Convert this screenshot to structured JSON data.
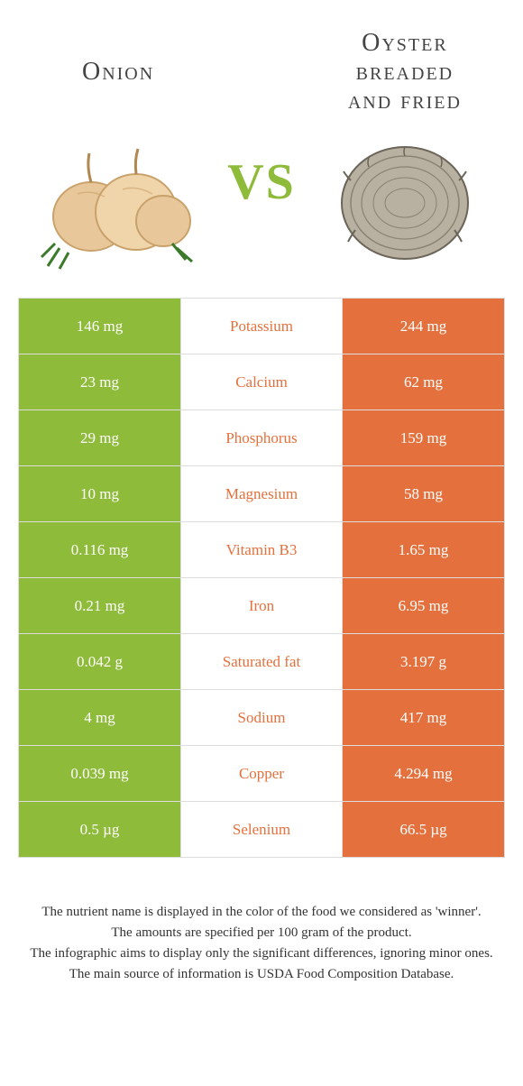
{
  "colors": {
    "left": "#8fbb3a",
    "right": "#e3703d",
    "vs": "#8fbb3a",
    "nutrient_text": "#e3703d"
  },
  "foods": {
    "left": {
      "title": "Onion"
    },
    "right": {
      "title": "Oyster\nbreaded\nand fried"
    }
  },
  "vs_label": "VS",
  "rows": [
    {
      "nutrient": "Potassium",
      "left": "146 mg",
      "right": "244 mg",
      "winner": "right"
    },
    {
      "nutrient": "Calcium",
      "left": "23 mg",
      "right": "62 mg",
      "winner": "right"
    },
    {
      "nutrient": "Phosphorus",
      "left": "29 mg",
      "right": "159 mg",
      "winner": "right"
    },
    {
      "nutrient": "Magnesium",
      "left": "10 mg",
      "right": "58 mg",
      "winner": "right"
    },
    {
      "nutrient": "Vitamin B3",
      "left": "0.116 mg",
      "right": "1.65 mg",
      "winner": "right"
    },
    {
      "nutrient": "Iron",
      "left": "0.21 mg",
      "right": "6.95 mg",
      "winner": "right"
    },
    {
      "nutrient": "Saturated fat",
      "left": "0.042 g",
      "right": "3.197 g",
      "winner": "right"
    },
    {
      "nutrient": "Sodium",
      "left": "4 mg",
      "right": "417 mg",
      "winner": "right"
    },
    {
      "nutrient": "Copper",
      "left": "0.039 mg",
      "right": "4.294 mg",
      "winner": "right"
    },
    {
      "nutrient": "Selenium",
      "left": "0.5 µg",
      "right": "66.5 µg",
      "winner": "right"
    }
  ],
  "footnotes": [
    "The nutrient name is displayed in the color of the food we considered as 'winner'.",
    "The amounts are specified per 100 gram of the product.",
    "The infographic aims to display only the significant differences, ignoring minor ones.",
    "The main source of information is USDA Food Composition Database."
  ]
}
